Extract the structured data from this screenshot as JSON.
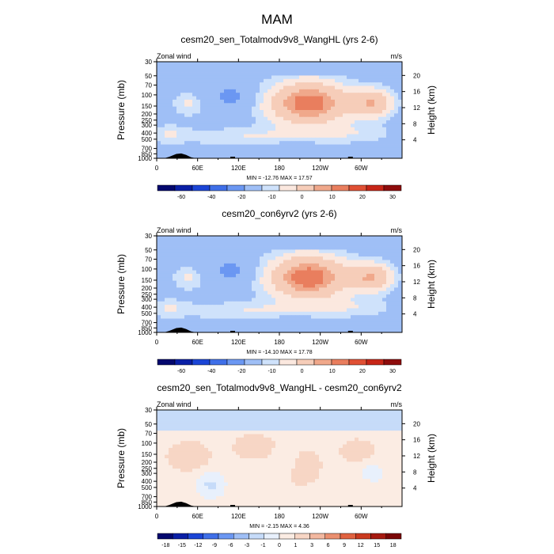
{
  "figure_title": "MAM",
  "colors": {
    "full_palette": [
      "#04086e",
      "#0a1fa6",
      "#1b45d6",
      "#3f6fe8",
      "#6b97f2",
      "#9fbff6",
      "#cfe2fb",
      "#fbe8df",
      "#f6cdb9",
      "#f0a88b",
      "#e97e5e",
      "#e05034",
      "#c72517",
      "#8e0c0c"
    ],
    "diff_palette": [
      "#04086e",
      "#0a1fa6",
      "#1b45d6",
      "#3f6fe8",
      "#6b97f2",
      "#9fbff6",
      "#c6dbf9",
      "#e8f0fc",
      "#fbece3",
      "#f7d6c5",
      "#f2b8a0",
      "#ea8f6f",
      "#e06240",
      "#ca3a1f",
      "#a61a10",
      "#7a0606"
    ]
  },
  "chart_data": [
    {
      "type": "heatmap",
      "title": "cesm20_sen_Totalmodv9v8_WangHL (yrs 2-6)",
      "left_label": "Zonal wind",
      "right_label": "m/s",
      "ylabel": "Pressure (mb)",
      "y2label": "Height (km)",
      "x_ticks": [
        "0",
        "60E",
        "120E",
        "180",
        "120W",
        "60W"
      ],
      "y_ticks": [
        "30",
        "50",
        "70",
        "100",
        "150",
        "200",
        "250",
        "300",
        "400",
        "500",
        "700",
        "850",
        "1000"
      ],
      "y2_ticks": [
        "20",
        "16",
        "12",
        "8",
        "4"
      ],
      "stats": "MIN = -12.76  MAX =  17.57",
      "min": -12.76,
      "max": 17.57,
      "colorbar_labels": [
        "-60",
        "-40",
        "-20",
        "-10",
        "0",
        "10",
        "20",
        "30"
      ],
      "palette": "full"
    },
    {
      "type": "heatmap",
      "title": "cesm20_con6yrv2 (yrs 2-6)",
      "left_label": "Zonal wind",
      "right_label": "m/s",
      "ylabel": "Pressure (mb)",
      "y2label": "Height (km)",
      "x_ticks": [
        "0",
        "60E",
        "120E",
        "180",
        "120W",
        "60W"
      ],
      "y_ticks": [
        "30",
        "50",
        "70",
        "100",
        "150",
        "200",
        "250",
        "300",
        "400",
        "500",
        "700",
        "850",
        "1000"
      ],
      "y2_ticks": [
        "20",
        "16",
        "12",
        "8",
        "4"
      ],
      "stats": "MIN = -14.10  MAX =  17.78",
      "min": -14.1,
      "max": 17.78,
      "colorbar_labels": [
        "-60",
        "-40",
        "-20",
        "-10",
        "0",
        "10",
        "20",
        "30"
      ],
      "palette": "full"
    },
    {
      "type": "heatmap",
      "title": "cesm20_sen_Totalmodv9v8_WangHL - cesm20_con6yrv2",
      "left_label": "Zonal wind",
      "right_label": "m/s",
      "ylabel": "Pressure (mb)",
      "y2label": "Height (km)",
      "x_ticks": [
        "0",
        "60E",
        "120E",
        "180",
        "120W",
        "60W"
      ],
      "y_ticks": [
        "30",
        "50",
        "70",
        "100",
        "150",
        "200",
        "250",
        "300",
        "400",
        "500",
        "700",
        "850",
        "1000"
      ],
      "y2_ticks": [
        "20",
        "16",
        "12",
        "8",
        "4"
      ],
      "stats": "MIN =  -2.15  MAX =   4.36",
      "min": -2.15,
      "max": 4.36,
      "colorbar_labels": [
        "-18",
        "-15",
        "-12",
        "-9",
        "-6",
        "-3",
        "-1",
        "0",
        "1",
        "3",
        "6",
        "9",
        "12",
        "15",
        "18"
      ],
      "palette": "diff"
    }
  ]
}
